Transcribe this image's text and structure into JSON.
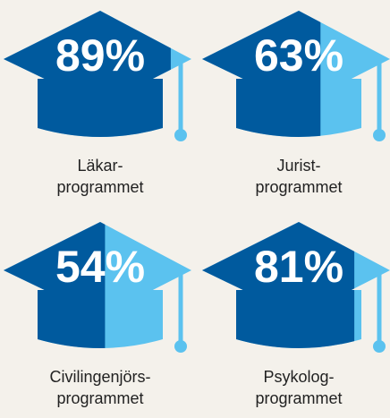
{
  "chart_data": {
    "type": "pictograph",
    "categories": [
      [
        "Läkar-",
        "programmet"
      ],
      [
        "Jurist-",
        "programmet"
      ],
      [
        "Civilingenjörs-",
        "programmet"
      ],
      [
        "Psykolog-",
        "programmet"
      ]
    ],
    "values": [
      89,
      63,
      54,
      81
    ],
    "value_labels": [
      "89%",
      "63%",
      "54%",
      "81%"
    ],
    "xlim": [
      0,
      100
    ],
    "colors": {
      "filled": "#005a9e",
      "empty": "#5bc2ef"
    }
  }
}
